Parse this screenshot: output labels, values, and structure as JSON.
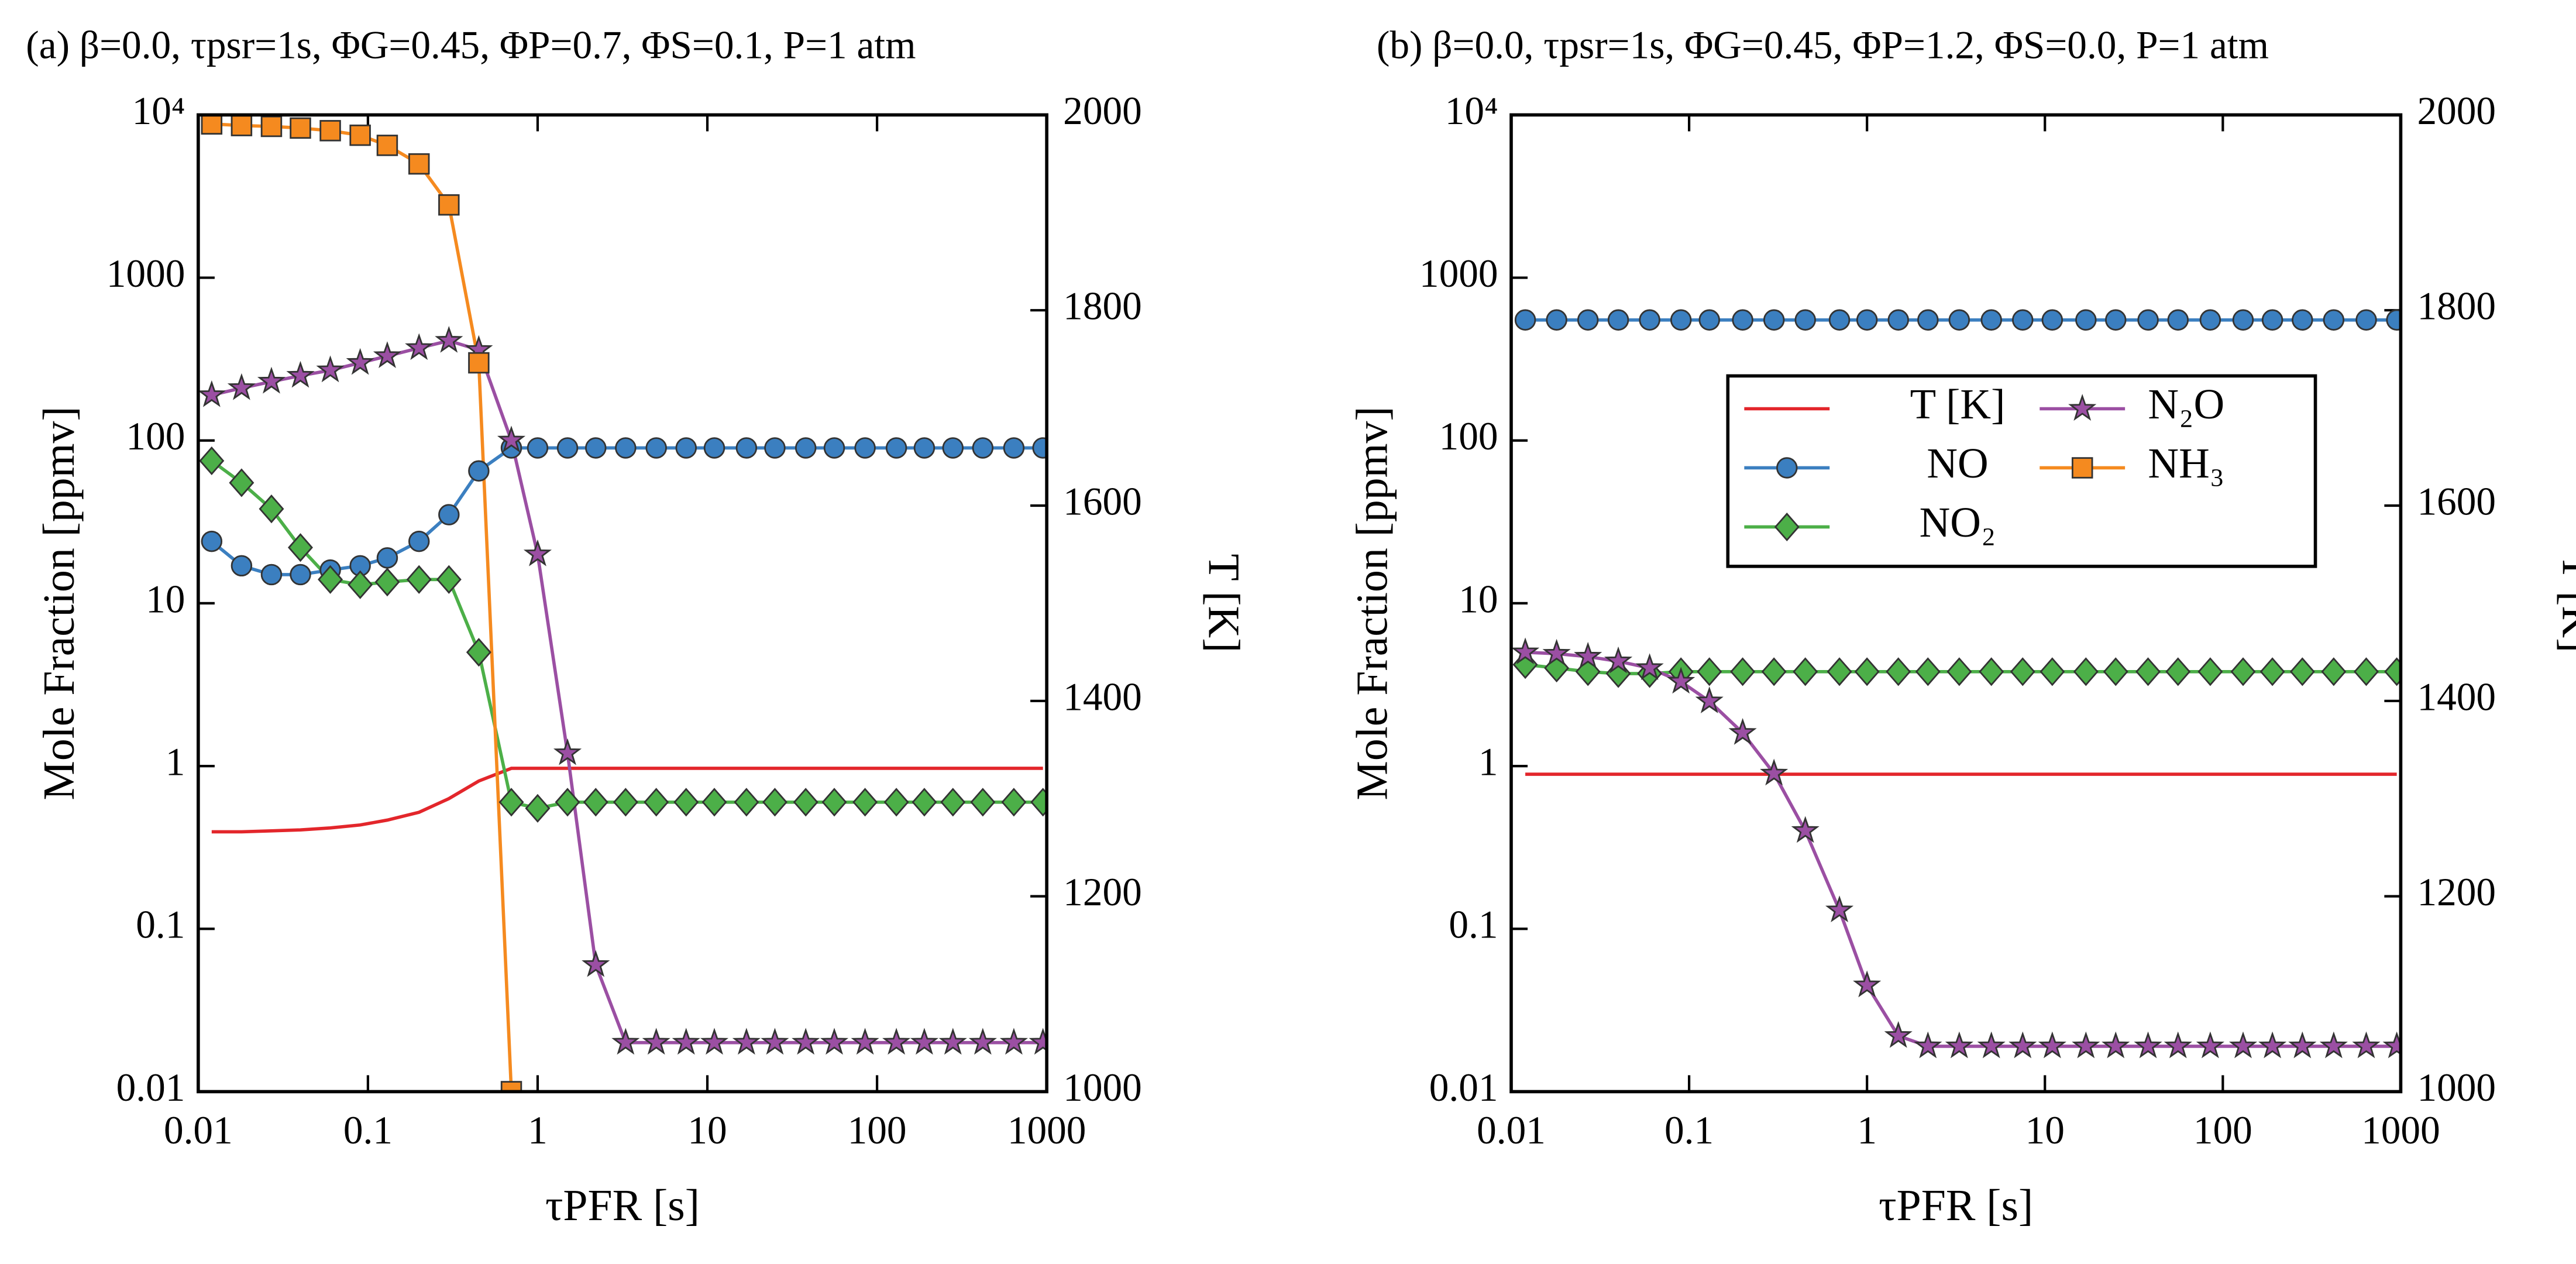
{
  "chart_data": [
    {
      "type": "line",
      "title": "(a) β=0.0, τpsr=1s, ΦG=0.45, ΦP=0.7, ΦS=0.1, P=1 atm",
      "xlabel": "τPFR [s]",
      "ylabel": "Mole Fraction [ppmv]",
      "y2label": "T [K]",
      "xscale": "log",
      "yscale": "log",
      "xlim": [
        0.01,
        1000
      ],
      "ylim": [
        0.01,
        10000
      ],
      "y2lim": [
        1000,
        2000
      ],
      "xticks": [
        0.01,
        0.1,
        1,
        10,
        100,
        1000
      ],
      "yticks": [
        0.01,
        0.1,
        1,
        10,
        100,
        1000,
        {
          "value": 10000,
          "label": "10⁴"
        }
      ],
      "y2ticks": [
        1000,
        1200,
        1400,
        1600,
        1800,
        2000
      ],
      "x": [
        0.012,
        0.018,
        0.027,
        0.04,
        0.06,
        0.09,
        0.13,
        0.2,
        0.3,
        0.45,
        0.7,
        1,
        1.5,
        2.2,
        3.3,
        5,
        7.5,
        11,
        17,
        25,
        38,
        56,
        85,
        130,
        190,
        280,
        420,
        640,
        950
      ],
      "series": [
        {
          "name": "T [K]",
          "color": "#e3262b",
          "marker": "none",
          "axis": "y2",
          "values": [
            1266,
            1266,
            1267,
            1268,
            1270,
            1273,
            1278,
            1286,
            1300,
            1318,
            1331,
            1331,
            1331,
            1331,
            1331,
            1331,
            1331,
            1331,
            1331,
            1331,
            1331,
            1331,
            1331,
            1331,
            1331,
            1331,
            1331,
            1331,
            1331
          ]
        },
        {
          "name": "NO",
          "color": "#3b7fc0",
          "marker": "circle",
          "values": [
            24,
            17,
            15,
            15,
            16,
            17,
            19,
            24,
            35,
            65,
            90,
            90,
            90,
            90,
            90,
            90,
            90,
            90,
            90,
            90,
            90,
            90,
            90,
            90,
            90,
            90,
            90,
            90,
            90
          ]
        },
        {
          "name": "NO₂",
          "color": "#4caf48",
          "marker": "diamond",
          "values": [
            75,
            55,
            38,
            22,
            14,
            13,
            13.5,
            14,
            14,
            5,
            0.6,
            0.55,
            0.6,
            0.6,
            0.6,
            0.6,
            0.6,
            0.6,
            0.6,
            0.6,
            0.6,
            0.6,
            0.6,
            0.6,
            0.6,
            0.6,
            0.6,
            0.6,
            0.6
          ]
        },
        {
          "name": "N₂O",
          "color": "#9b4fa3",
          "marker": "star",
          "values": [
            190,
            210,
            230,
            250,
            270,
            300,
            330,
            370,
            410,
            360,
            100,
            20,
            1.2,
            0.06,
            0.02,
            0.02,
            0.02,
            0.02,
            0.02,
            0.02,
            0.02,
            0.02,
            0.02,
            0.02,
            0.02,
            0.02,
            0.02,
            0.02,
            0.02
          ]
        },
        {
          "name": "NH₃",
          "color": "#f58a1f",
          "marker": "square",
          "values": [
            8800,
            8600,
            8500,
            8300,
            8000,
            7500,
            6500,
            5000,
            2800,
            300,
            0.01,
            null,
            null,
            null,
            null,
            null,
            null,
            null,
            null,
            null,
            null,
            null,
            null,
            null,
            null,
            null,
            null,
            null,
            null
          ]
        }
      ]
    },
    {
      "type": "line",
      "title": "(b) β=0.0, τpsr=1s, ΦG=0.45, ΦP=1.2, ΦS=0.0, P=1 atm",
      "xlabel": "τPFR [s]",
      "ylabel": "Mole Fraction [ppmv]",
      "y2label": "T [K]",
      "xscale": "log",
      "yscale": "log",
      "legend": "center right",
      "xlim": [
        0.01,
        1000
      ],
      "ylim": [
        0.01,
        10000
      ],
      "y2lim": [
        1000,
        2000
      ],
      "xticks": [
        0.01,
        0.1,
        1,
        10,
        100,
        1000
      ],
      "yticks": [
        0.01,
        0.1,
        1,
        10,
        100,
        1000,
        {
          "value": 10000,
          "label": "10⁴"
        }
      ],
      "y2ticks": [
        1000,
        1200,
        1400,
        1600,
        1800,
        2000
      ],
      "x": [
        0.012,
        0.018,
        0.027,
        0.04,
        0.06,
        0.09,
        0.13,
        0.2,
        0.3,
        0.45,
        0.7,
        1,
        1.5,
        2.2,
        3.3,
        5,
        7.5,
        11,
        17,
        25,
        38,
        56,
        85,
        130,
        190,
        280,
        420,
        640,
        950
      ],
      "series": [
        {
          "name": "T [K]",
          "color": "#e3262b",
          "marker": "none",
          "axis": "y2",
          "values": [
            1325,
            1325,
            1325,
            1325,
            1325,
            1325,
            1325,
            1325,
            1325,
            1325,
            1325,
            1325,
            1325,
            1325,
            1325,
            1325,
            1325,
            1325,
            1325,
            1325,
            1325,
            1325,
            1325,
            1325,
            1325,
            1325,
            1325,
            1325,
            1325
          ]
        },
        {
          "name": "NO",
          "color": "#3b7fc0",
          "marker": "circle",
          "values": [
            550,
            550,
            550,
            550,
            550,
            550,
            550,
            550,
            550,
            550,
            550,
            550,
            550,
            550,
            550,
            550,
            550,
            550,
            550,
            550,
            550,
            550,
            550,
            550,
            550,
            550,
            550,
            550,
            550
          ]
        },
        {
          "name": "NO₂",
          "color": "#4caf48",
          "marker": "diamond",
          "values": [
            4.2,
            4,
            3.8,
            3.7,
            3.7,
            3.8,
            3.8,
            3.8,
            3.8,
            3.8,
            3.8,
            3.8,
            3.8,
            3.8,
            3.8,
            3.8,
            3.8,
            3.8,
            3.8,
            3.8,
            3.8,
            3.8,
            3.8,
            3.8,
            3.8,
            3.8,
            3.8,
            3.8,
            3.8
          ]
        },
        {
          "name": "N₂O",
          "color": "#9b4fa3",
          "marker": "star",
          "values": [
            5,
            4.9,
            4.7,
            4.4,
            4,
            3.3,
            2.5,
            1.6,
            0.9,
            0.4,
            0.13,
            0.045,
            0.022,
            0.019,
            0.019,
            0.019,
            0.019,
            0.019,
            0.019,
            0.019,
            0.019,
            0.019,
            0.019,
            0.019,
            0.019,
            0.019,
            0.019,
            0.019,
            0.019
          ]
        },
        {
          "name": "NH₃",
          "color": "#f58a1f",
          "marker": "square",
          "values": [
            null,
            null,
            null,
            null,
            null,
            null,
            null,
            null,
            null,
            null,
            null,
            null,
            null,
            null,
            null,
            null,
            null,
            null,
            null,
            null,
            null,
            null,
            null,
            null,
            null,
            null,
            null,
            null,
            null
          ]
        }
      ]
    }
  ]
}
